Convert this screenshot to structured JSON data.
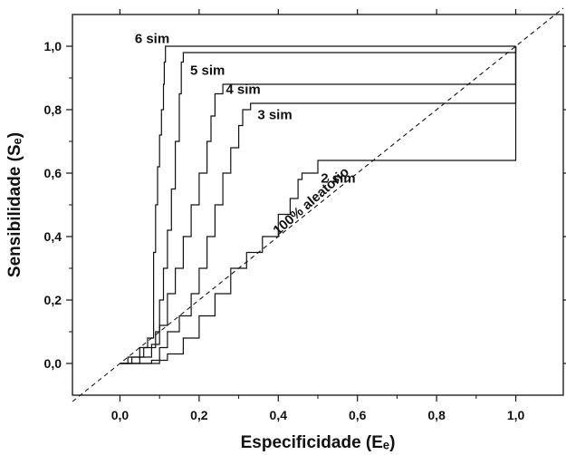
{
  "chart_data": {
    "type": "line",
    "xlabel": "Especificidade (Eₑ)",
    "ylabel": "Sensibilidade (Sₑ)",
    "xlim": [
      -0.12,
      1.12
    ],
    "ylim": [
      -0.1,
      1.1
    ],
    "x_ticks": [
      "0,0",
      "0,2",
      "0,4",
      "0,6",
      "0,8",
      "1,0"
    ],
    "y_ticks": [
      "0,0",
      "0,2",
      "0,4",
      "0,6",
      "0,8",
      "1,0"
    ],
    "grid": false,
    "legend": "none",
    "reference_line": {
      "label": "100% aleatório",
      "x": [
        -0.12,
        1.12
      ],
      "y": [
        -0.12,
        1.12
      ]
    },
    "series": [
      {
        "name": "6 sim",
        "x": [
          0.0,
          0.02,
          0.05,
          0.07,
          0.085,
          0.09,
          0.095,
          0.1,
          0.105,
          0.11,
          0.112,
          0.115,
          1.0
        ],
        "y": [
          0.0,
          0.02,
          0.05,
          0.08,
          0.35,
          0.5,
          0.62,
          0.72,
          0.8,
          0.88,
          0.95,
          1.0,
          1.0
        ]
      },
      {
        "name": "5 sim",
        "x": [
          0.0,
          0.03,
          0.06,
          0.09,
          0.1,
          0.11,
          0.12,
          0.13,
          0.14,
          0.15,
          0.155,
          0.16,
          1.0
        ],
        "y": [
          0.0,
          0.02,
          0.05,
          0.1,
          0.2,
          0.3,
          0.42,
          0.55,
          0.7,
          0.85,
          0.95,
          0.98,
          1.0
        ]
      },
      {
        "name": "4 sim",
        "x": [
          0.0,
          0.05,
          0.08,
          0.1,
          0.12,
          0.14,
          0.16,
          0.18,
          0.2,
          0.22,
          0.23,
          0.24,
          0.26,
          1.0
        ],
        "y": [
          0.0,
          0.02,
          0.06,
          0.12,
          0.22,
          0.3,
          0.4,
          0.5,
          0.6,
          0.7,
          0.78,
          0.85,
          0.88,
          1.0
        ]
      },
      {
        "name": "3 sim",
        "x": [
          0.0,
          0.08,
          0.1,
          0.12,
          0.15,
          0.18,
          0.2,
          0.22,
          0.24,
          0.26,
          0.28,
          0.3,
          0.31,
          0.33,
          1.0
        ],
        "y": [
          0.0,
          0.01,
          0.05,
          0.1,
          0.15,
          0.22,
          0.3,
          0.4,
          0.5,
          0.6,
          0.68,
          0.75,
          0.8,
          0.82,
          1.0
        ]
      },
      {
        "name": "2 sim",
        "x": [
          0.0,
          0.1,
          0.12,
          0.16,
          0.2,
          0.24,
          0.28,
          0.32,
          0.36,
          0.4,
          0.43,
          0.45,
          0.46,
          0.5,
          1.0
        ],
        "y": [
          0.0,
          0.01,
          0.03,
          0.08,
          0.15,
          0.22,
          0.3,
          0.35,
          0.4,
          0.47,
          0.52,
          0.58,
          0.6,
          0.64,
          1.0
        ]
      }
    ]
  }
}
